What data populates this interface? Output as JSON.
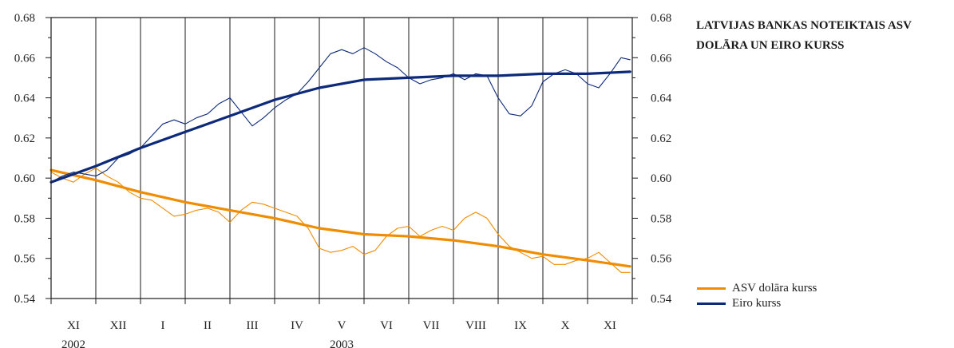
{
  "title": {
    "line1": "LATVIJAS BANKAS NOTEIKTAIS ASV",
    "line2": "DOLĀRA UN EIRO KURSS"
  },
  "legend": [
    {
      "label": "ASV dolāra kurss",
      "color": "#f08c00"
    },
    {
      "label": "Eiro kurss",
      "color": "#0d2a7a"
    }
  ],
  "chart_data": {
    "type": "line",
    "ylim": [
      0.54,
      0.68
    ],
    "y_ticks": [
      "0.54",
      "0.56",
      "0.58",
      "0.60",
      "0.62",
      "0.64",
      "0.66",
      "0.68"
    ],
    "y_axes": "both",
    "grid": "vertical",
    "categories": [
      "XI",
      "XII",
      "I",
      "II",
      "III",
      "IV",
      "V",
      "VI",
      "VII",
      "VIII",
      "IX",
      "X",
      "XI"
    ],
    "years": [
      {
        "label": "2002",
        "category_index": 0.5
      },
      {
        "label": "2003",
        "category_index": 6.5
      }
    ],
    "x_range": [
      0,
      13
    ],
    "legend_position": "right",
    "series": [
      {
        "name": "ASV dolāra kurss",
        "color": "#f08c00",
        "kind": "daily",
        "x": [
          0,
          0.25,
          0.5,
          0.75,
          1,
          1.25,
          1.5,
          1.75,
          2,
          2.25,
          2.5,
          2.75,
          3,
          3.25,
          3.5,
          3.75,
          4,
          4.25,
          4.5,
          4.75,
          5,
          5.25,
          5.5,
          5.75,
          6,
          6.25,
          6.5,
          6.75,
          7,
          7.25,
          7.5,
          7.75,
          8,
          8.25,
          8.5,
          8.75,
          9,
          9.25,
          9.5,
          9.75,
          10,
          10.25,
          10.5,
          10.75,
          11,
          11.25,
          11.5,
          11.75,
          12,
          12.25,
          12.5,
          12.75,
          12.95
        ],
        "y": [
          0.603,
          0.6,
          0.598,
          0.602,
          0.605,
          0.601,
          0.598,
          0.593,
          0.59,
          0.589,
          0.585,
          0.581,
          0.582,
          0.584,
          0.585,
          0.583,
          0.578,
          0.584,
          0.588,
          0.587,
          0.585,
          0.583,
          0.581,
          0.575,
          0.565,
          0.563,
          0.564,
          0.566,
          0.562,
          0.564,
          0.571,
          0.575,
          0.576,
          0.571,
          0.574,
          0.576,
          0.574,
          0.58,
          0.583,
          0.58,
          0.572,
          0.566,
          0.563,
          0.56,
          0.561,
          0.557,
          0.557,
          0.559,
          0.56,
          0.563,
          0.558,
          0.553,
          0.553
        ]
      },
      {
        "name": "ASV dolāra kurss",
        "color": "#f08c00",
        "kind": "trend",
        "x": [
          0,
          1,
          2,
          3,
          4,
          5,
          6,
          7,
          8,
          9,
          10,
          11,
          12,
          12.95
        ],
        "y": [
          0.604,
          0.599,
          0.593,
          0.588,
          0.584,
          0.58,
          0.575,
          0.572,
          0.571,
          0.569,
          0.566,
          0.562,
          0.559,
          0.556
        ]
      },
      {
        "name": "Eiro kurss",
        "color": "#0d2a7a",
        "kind": "daily",
        "x": [
          0,
          0.25,
          0.5,
          0.75,
          1,
          1.25,
          1.5,
          1.75,
          2,
          2.25,
          2.5,
          2.75,
          3,
          3.25,
          3.5,
          3.75,
          4,
          4.25,
          4.5,
          4.75,
          5,
          5.25,
          5.5,
          5.75,
          6,
          6.25,
          6.5,
          6.75,
          7,
          7.25,
          7.5,
          7.75,
          8,
          8.25,
          8.5,
          8.75,
          9,
          9.25,
          9.5,
          9.75,
          10,
          10.25,
          10.5,
          10.75,
          11,
          11.25,
          11.5,
          11.75,
          12,
          12.25,
          12.5,
          12.75,
          12.95
        ],
        "y": [
          0.598,
          0.601,
          0.603,
          0.602,
          0.601,
          0.604,
          0.61,
          0.612,
          0.615,
          0.621,
          0.627,
          0.629,
          0.627,
          0.63,
          0.632,
          0.637,
          0.64,
          0.633,
          0.626,
          0.63,
          0.635,
          0.639,
          0.642,
          0.648,
          0.655,
          0.662,
          0.664,
          0.662,
          0.665,
          0.662,
          0.658,
          0.655,
          0.65,
          0.647,
          0.649,
          0.65,
          0.652,
          0.649,
          0.652,
          0.651,
          0.64,
          0.632,
          0.631,
          0.636,
          0.648,
          0.652,
          0.654,
          0.652,
          0.647,
          0.645,
          0.652,
          0.66,
          0.659
        ]
      },
      {
        "name": "Eiro kurss",
        "color": "#0d2a7a",
        "kind": "trend",
        "x": [
          0,
          1,
          2,
          3,
          4,
          5,
          6,
          7,
          8,
          9,
          10,
          11,
          12,
          12.95
        ],
        "y": [
          0.598,
          0.606,
          0.615,
          0.623,
          0.631,
          0.639,
          0.645,
          0.649,
          0.65,
          0.651,
          0.651,
          0.652,
          0.652,
          0.653
        ]
      }
    ]
  }
}
